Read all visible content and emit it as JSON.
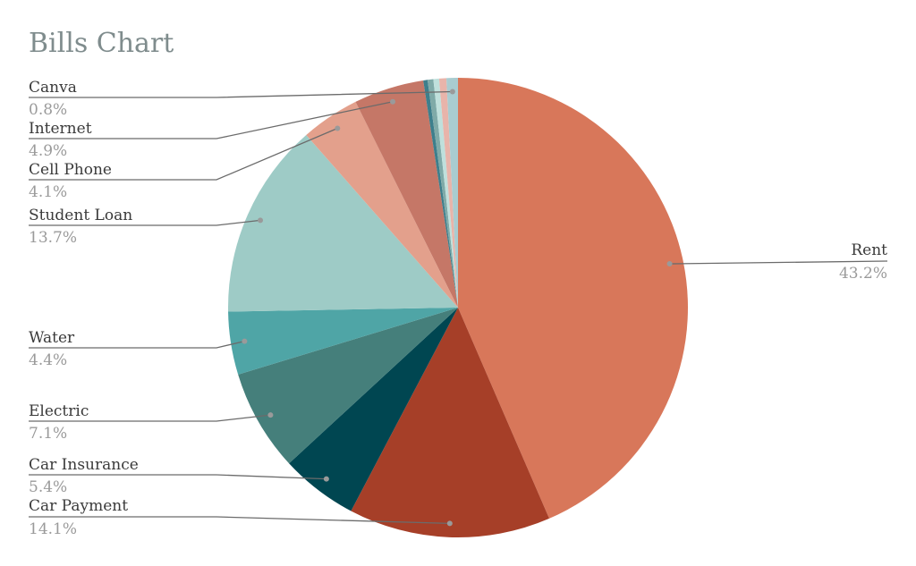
{
  "chart_data": {
    "type": "pie",
    "title": "Bills Chart",
    "start": "top",
    "direction": "clockwise",
    "slices": [
      {
        "label": "Rent",
        "value": 43.2,
        "pct_label": "43.2%",
        "color": "#D8775A"
      },
      {
        "label": "Car Payment",
        "value": 14.1,
        "pct_label": "14.1%",
        "color": "#A63F28"
      },
      {
        "label": "Car Insurance",
        "value": 5.4,
        "pct_label": "5.4%",
        "color": "#004651"
      },
      {
        "label": "Electric",
        "value": 7.1,
        "pct_label": "7.1%",
        "color": "#457F7B"
      },
      {
        "label": "Water",
        "value": 4.4,
        "pct_label": "4.4%",
        "color": "#4FA5A6"
      },
      {
        "label": "Student Loan",
        "value": 13.7,
        "pct_label": "13.7%",
        "color": "#9ECBC6"
      },
      {
        "label": "Cell Phone",
        "value": 4.1,
        "pct_label": "4.1%",
        "color": "#E3A08C"
      },
      {
        "label": "Internet",
        "value": 4.9,
        "pct_label": "4.9%",
        "color": "#C57767"
      },
      {
        "label": "",
        "value": 0.3,
        "pct_label": "",
        "color": "#3E7F8C"
      },
      {
        "label": "",
        "value": 0.4,
        "pct_label": "",
        "color": "#7FAAA8"
      },
      {
        "label": "",
        "value": 0.4,
        "pct_label": "",
        "color": "#BFE0DC"
      },
      {
        "label": "",
        "value": 0.5,
        "pct_label": "",
        "color": "#E8B4AA"
      },
      {
        "label": "Canva",
        "value": 0.8,
        "pct_label": "0.8%",
        "color": "#A9CCD0"
      }
    ]
  }
}
